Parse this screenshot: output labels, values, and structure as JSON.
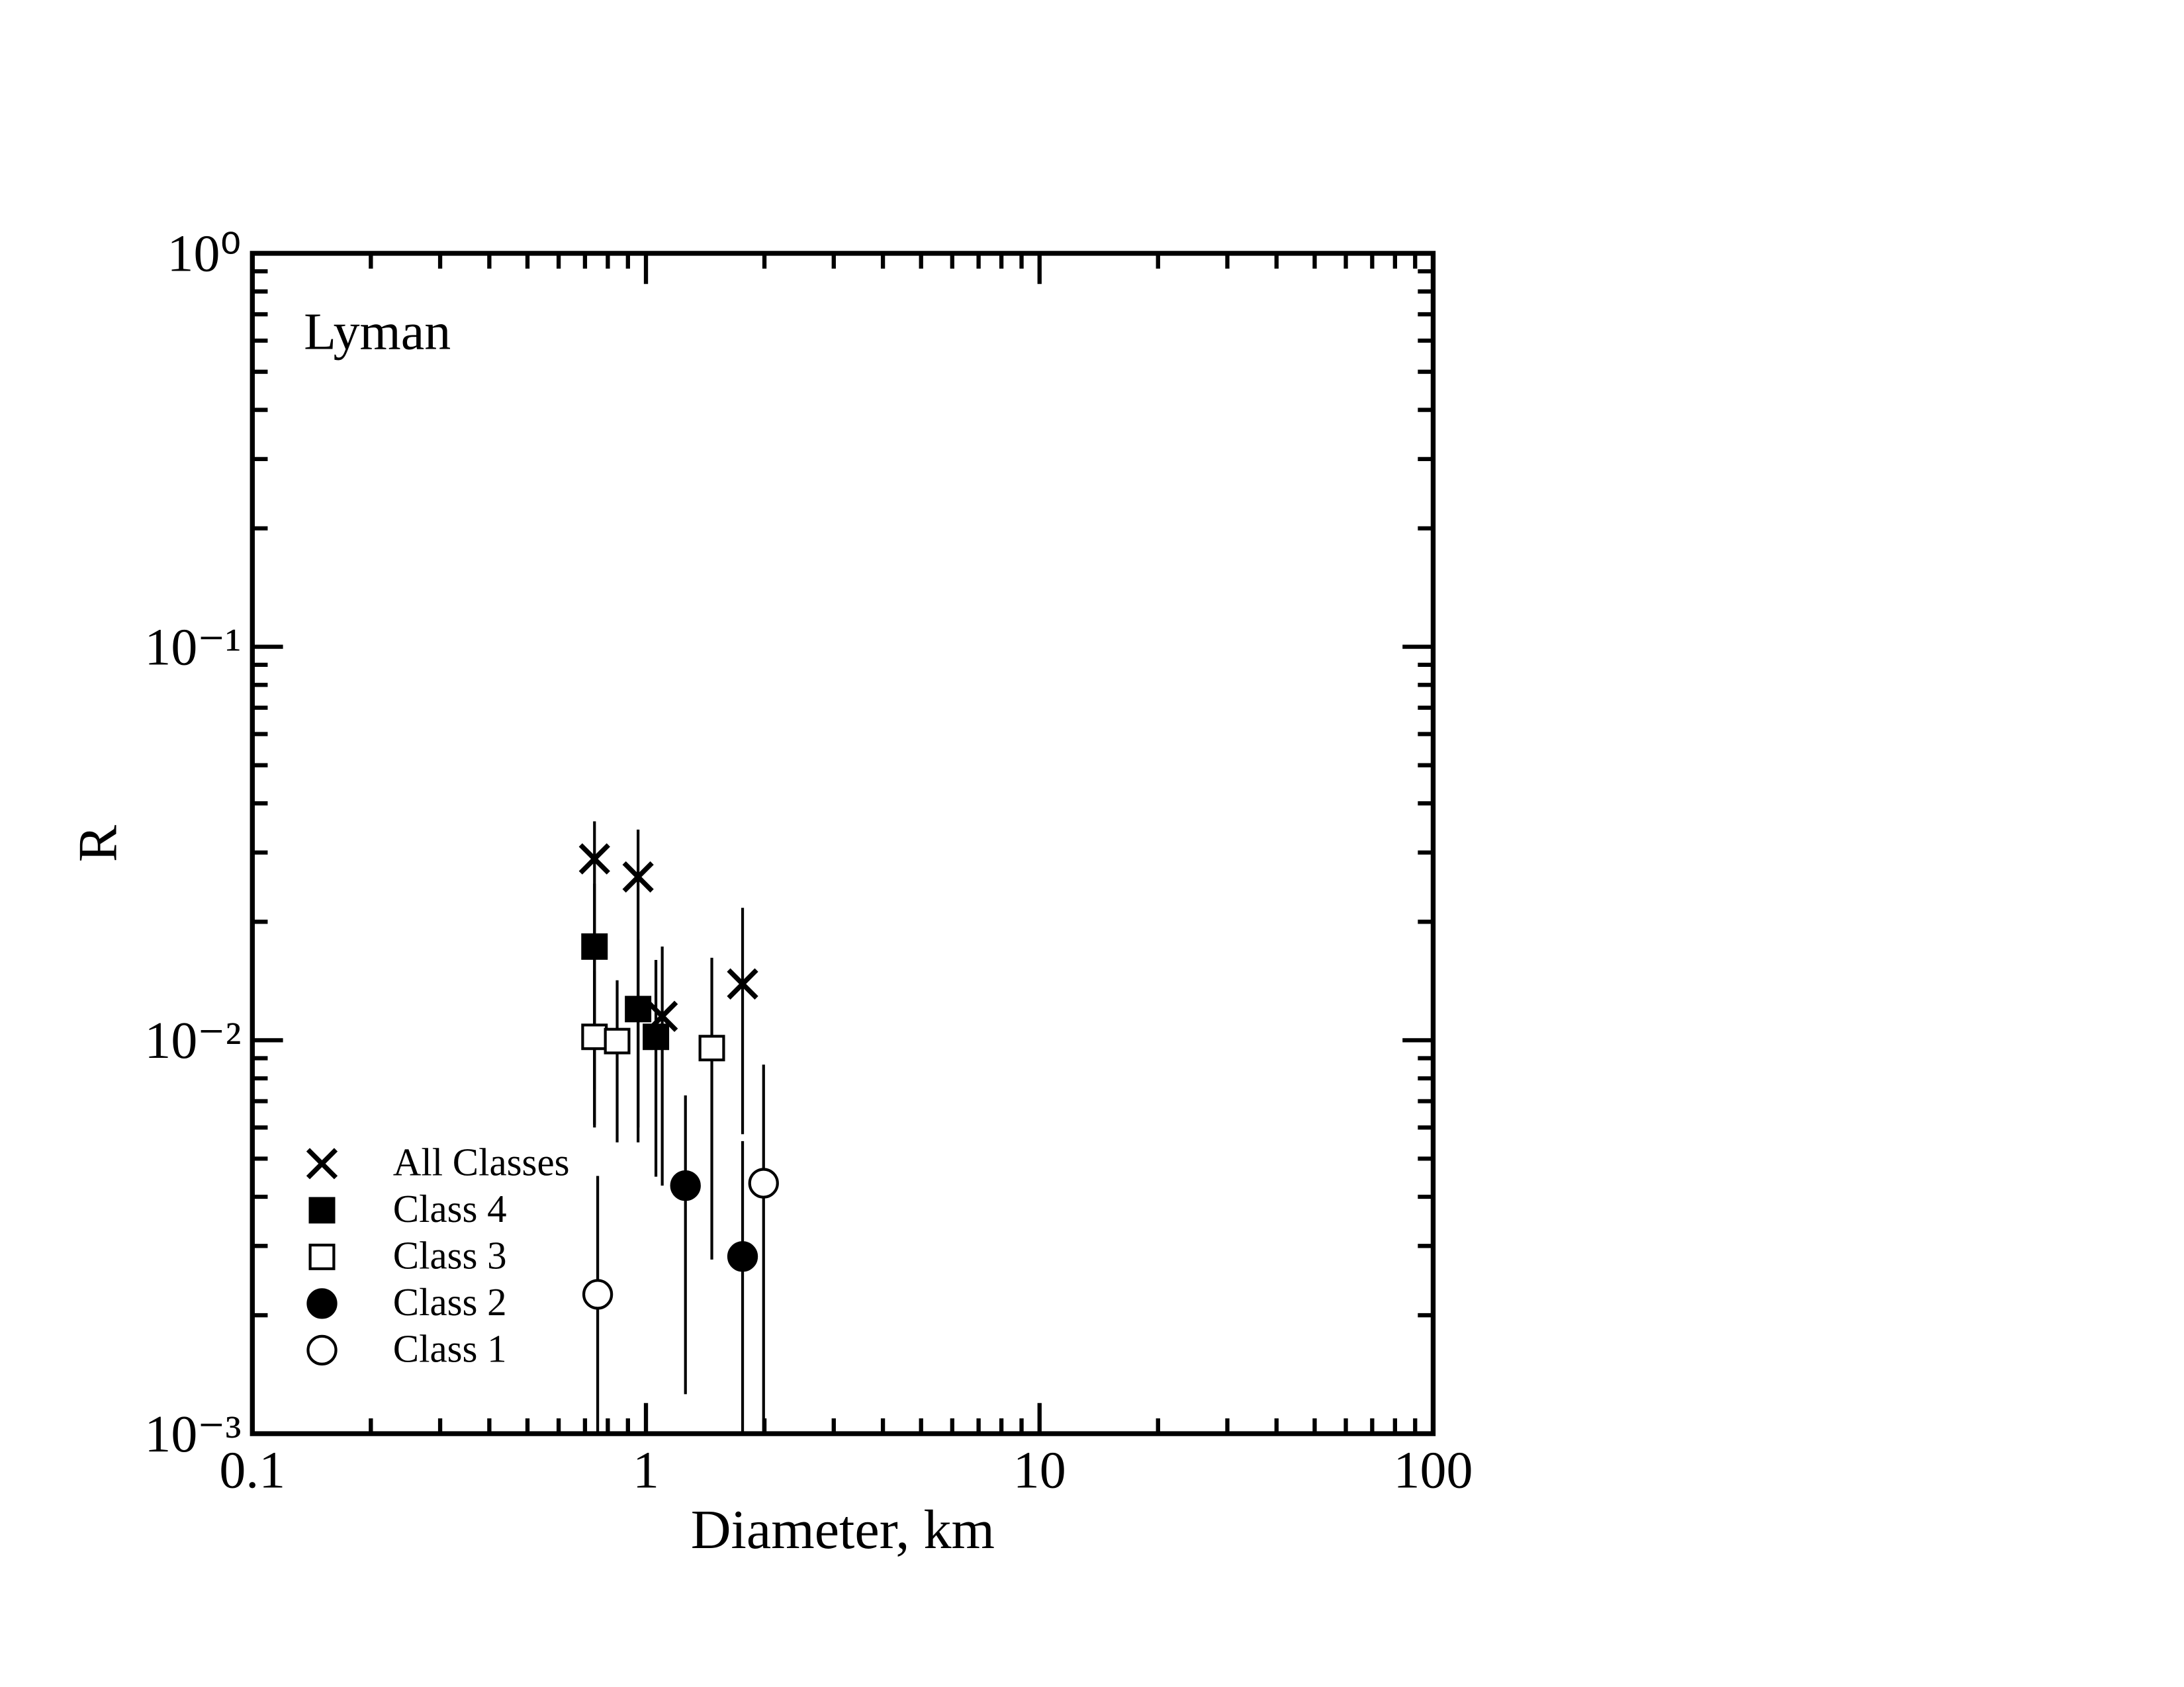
{
  "chart_data": {
    "type": "scatter",
    "annotation": "Lyman",
    "x_label": "Diameter, km",
    "y_label": "R",
    "xscale": "log",
    "yscale": "log",
    "xlim": [
      0.1,
      100
    ],
    "ylim": [
      0.001,
      1
    ],
    "xticks": [
      0.1,
      1,
      10,
      100
    ],
    "yticks": [
      {
        "value": 0.001,
        "label": "10⁻³"
      },
      {
        "value": 0.01,
        "label": "10⁻²"
      },
      {
        "value": 0.1,
        "label": "10⁻¹"
      },
      {
        "value": 1,
        "label": "10⁰"
      }
    ],
    "legend": "lower left",
    "series": [
      {
        "name": "All Classes",
        "marker": "x",
        "color": "#000000",
        "x": [
          0.74,
          0.955,
          1.1,
          1.76
        ],
        "values": [
          0.0289,
          0.026,
          0.0115,
          0.0139
        ],
        "lower": [
          0.0061,
          0.006,
          0.00427,
          0.00577
        ],
        "upper": [
          0.036,
          0.0343,
          0.0173,
          0.0217
        ]
      },
      {
        "name": "Class 4",
        "marker": "filled-square",
        "color": "#000000",
        "x": [
          0.74,
          0.955,
          1.06
        ],
        "values": [
          0.0173,
          0.012,
          0.0102
        ],
        "lower": [
          0.0075,
          0.0055,
          0.0045
        ],
        "upper": [
          0.025,
          0.018,
          0.016
        ]
      },
      {
        "name": "Class 3",
        "marker": "open-square",
        "color": "#000000",
        "x": [
          0.74,
          0.845,
          1.47
        ],
        "values": [
          0.0102,
          0.00995,
          0.00955
        ],
        "lower": [
          0.006,
          0.0055,
          0.00277
        ],
        "upper": [
          0.015,
          0.0142,
          0.0162
        ]
      },
      {
        "name": "Class 2",
        "marker": "filled-circle",
        "color": "#000000",
        "x": [
          1.26,
          1.76
        ],
        "values": [
          0.00427,
          0.00282
        ],
        "lower": [
          0.00126,
          0.001
        ],
        "upper": [
          0.00724,
          0.00554
        ]
      },
      {
        "name": "Class 1",
        "marker": "open-circle",
        "color": "#000000",
        "x": [
          0.754,
          1.99
        ],
        "values": [
          0.00226,
          0.00433
        ],
        "lower": [
          0.001,
          0.001
        ],
        "upper": [
          0.00452,
          0.00867
        ]
      }
    ]
  }
}
